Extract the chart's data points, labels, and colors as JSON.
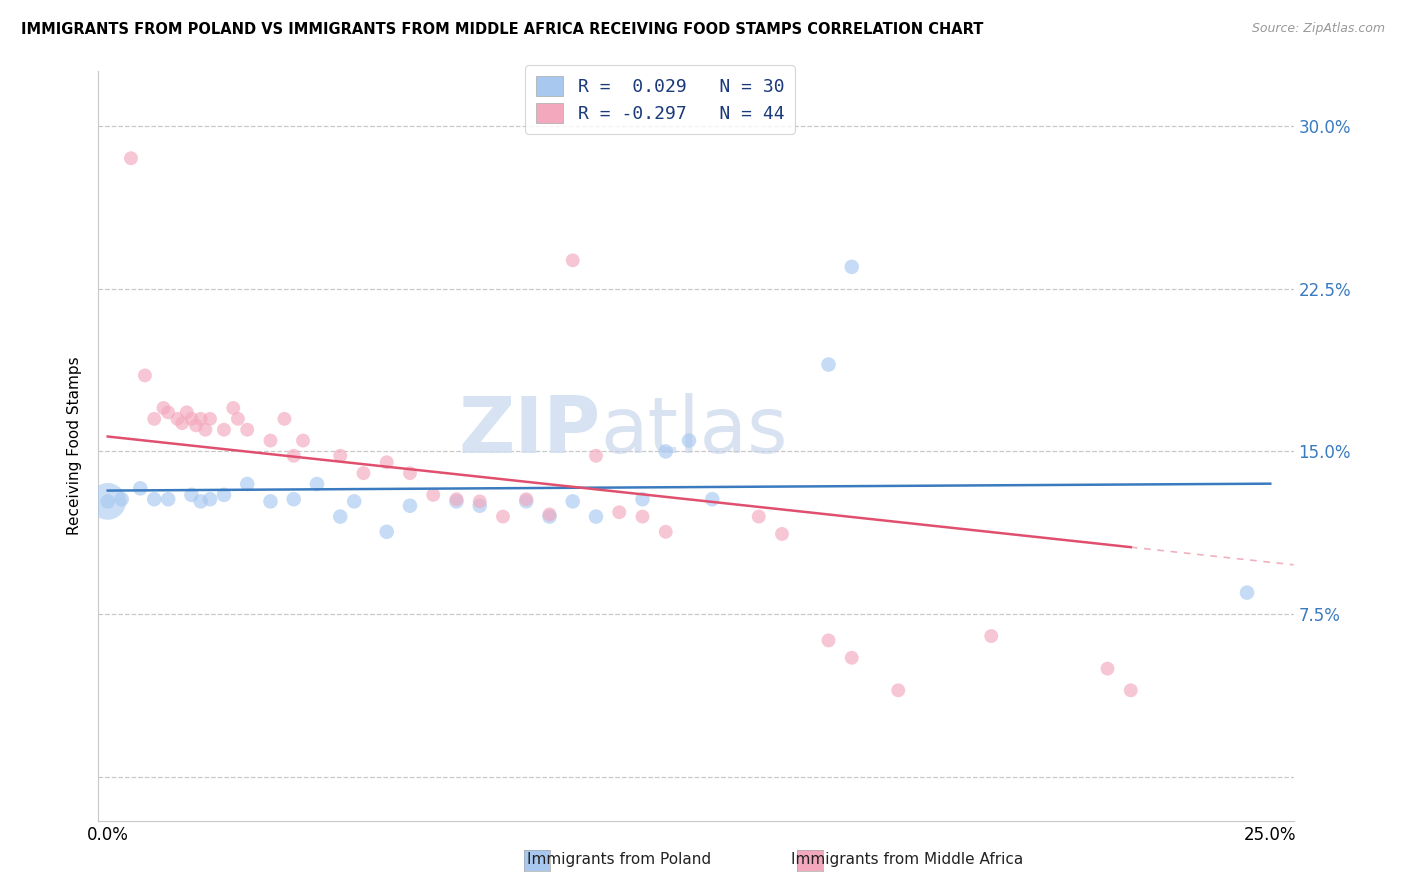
{
  "title": "IMMIGRANTS FROM POLAND VS IMMIGRANTS FROM MIDDLE AFRICA RECEIVING FOOD STAMPS CORRELATION CHART",
  "source": "Source: ZipAtlas.com",
  "ylabel": "Receiving Food Stamps",
  "ytick_values": [
    0.0,
    0.075,
    0.15,
    0.225,
    0.3
  ],
  "ytick_labels": [
    "",
    "7.5%",
    "15.0%",
    "22.5%",
    "30.0%"
  ],
  "xlim": [
    -0.002,
    0.255
  ],
  "ylim": [
    -0.02,
    0.325
  ],
  "legend_label1": "Immigrants from Poland",
  "legend_label2": "Immigrants from Middle Africa",
  "r1": "0.029",
  "n1": "30",
  "r2": "-0.297",
  "n2": "44",
  "color_poland": "#a8c8f0",
  "color_africa": "#f4a8be",
  "line_color_poland": "#3a7abf",
  "line_color_africa": "#e0506e",
  "watermark_zip": "ZIP",
  "watermark_atlas": "atlas",
  "poland_points": [
    [
      0.0,
      0.127
    ],
    [
      0.003,
      0.128
    ],
    [
      0.007,
      0.133
    ],
    [
      0.01,
      0.128
    ],
    [
      0.013,
      0.128
    ],
    [
      0.018,
      0.13
    ],
    [
      0.02,
      0.127
    ],
    [
      0.022,
      0.128
    ],
    [
      0.025,
      0.13
    ],
    [
      0.03,
      0.135
    ],
    [
      0.035,
      0.127
    ],
    [
      0.04,
      0.128
    ],
    [
      0.045,
      0.135
    ],
    [
      0.05,
      0.12
    ],
    [
      0.053,
      0.127
    ],
    [
      0.06,
      0.113
    ],
    [
      0.065,
      0.125
    ],
    [
      0.075,
      0.127
    ],
    [
      0.08,
      0.125
    ],
    [
      0.09,
      0.127
    ],
    [
      0.095,
      0.12
    ],
    [
      0.1,
      0.127
    ],
    [
      0.105,
      0.12
    ],
    [
      0.115,
      0.128
    ],
    [
      0.12,
      0.15
    ],
    [
      0.125,
      0.155
    ],
    [
      0.13,
      0.128
    ],
    [
      0.155,
      0.19
    ],
    [
      0.16,
      0.235
    ],
    [
      0.245,
      0.085
    ]
  ],
  "poland_large": [
    0.0,
    0.127
  ],
  "poland_large_size": 700,
  "africa_points": [
    [
      0.005,
      0.285
    ],
    [
      0.008,
      0.185
    ],
    [
      0.01,
      0.165
    ],
    [
      0.012,
      0.17
    ],
    [
      0.013,
      0.168
    ],
    [
      0.015,
      0.165
    ],
    [
      0.016,
      0.163
    ],
    [
      0.017,
      0.168
    ],
    [
      0.018,
      0.165
    ],
    [
      0.019,
      0.162
    ],
    [
      0.02,
      0.165
    ],
    [
      0.021,
      0.16
    ],
    [
      0.022,
      0.165
    ],
    [
      0.025,
      0.16
    ],
    [
      0.027,
      0.17
    ],
    [
      0.028,
      0.165
    ],
    [
      0.03,
      0.16
    ],
    [
      0.035,
      0.155
    ],
    [
      0.038,
      0.165
    ],
    [
      0.04,
      0.148
    ],
    [
      0.042,
      0.155
    ],
    [
      0.05,
      0.148
    ],
    [
      0.055,
      0.14
    ],
    [
      0.06,
      0.145
    ],
    [
      0.065,
      0.14
    ],
    [
      0.07,
      0.13
    ],
    [
      0.075,
      0.128
    ],
    [
      0.08,
      0.127
    ],
    [
      0.085,
      0.12
    ],
    [
      0.09,
      0.128
    ],
    [
      0.095,
      0.121
    ],
    [
      0.1,
      0.238
    ],
    [
      0.105,
      0.148
    ],
    [
      0.11,
      0.122
    ],
    [
      0.115,
      0.12
    ],
    [
      0.12,
      0.113
    ],
    [
      0.14,
      0.12
    ],
    [
      0.145,
      0.112
    ],
    [
      0.155,
      0.063
    ],
    [
      0.16,
      0.055
    ],
    [
      0.17,
      0.04
    ],
    [
      0.19,
      0.065
    ],
    [
      0.215,
      0.05
    ],
    [
      0.22,
      0.04
    ]
  ]
}
